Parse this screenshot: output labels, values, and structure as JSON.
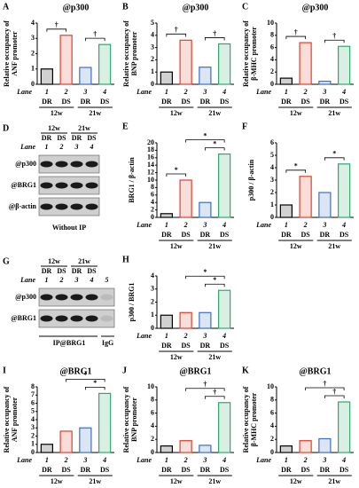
{
  "chart_data": [
    {
      "type": "bar",
      "panel": "A",
      "title": "@p300",
      "ylabel": [
        "Relative occupancy of",
        "ANF promoter"
      ],
      "lane_label": "Lane",
      "categories": [
        "1",
        "2",
        "3",
        "4"
      ],
      "conditions": [
        "DR",
        "DS",
        "DR",
        "DS"
      ],
      "ages": [
        "12w",
        "21w"
      ],
      "colors": [
        "#000000",
        "#e0402a",
        "#3a6fc4",
        "#2ea86b"
      ],
      "values": [
        1,
        3.2,
        1.1,
        2.6
      ],
      "ylim": [
        0,
        4
      ],
      "yticks": [
        0,
        1,
        2,
        3,
        4
      ],
      "sig": [
        {
          "from": 0,
          "to": 1,
          "label": "†"
        },
        {
          "from": 2,
          "to": 3,
          "label": "†"
        }
      ]
    },
    {
      "type": "bar",
      "panel": "B",
      "title": "@p300",
      "ylabel": [
        "Relative occupancy of",
        "BNP promoter"
      ],
      "lane_label": "Lane",
      "categories": [
        "1",
        "2",
        "3",
        "4"
      ],
      "conditions": [
        "DR",
        "DS",
        "DR",
        "DS"
      ],
      "ages": [
        "12w",
        "21w"
      ],
      "colors": [
        "#000000",
        "#e0402a",
        "#3a6fc4",
        "#2ea86b"
      ],
      "values": [
        1,
        3.6,
        1.4,
        3.3
      ],
      "ylim": [
        0,
        5
      ],
      "yticks": [
        0,
        1,
        2,
        3,
        4,
        5
      ],
      "sig": [
        {
          "from": 0,
          "to": 1,
          "label": "†"
        },
        {
          "from": 2,
          "to": 3,
          "label": "†"
        }
      ]
    },
    {
      "type": "bar",
      "panel": "C",
      "title": "@p300",
      "ylabel": [
        "Relative occupancy of",
        "β-MHC promoter"
      ],
      "lane_label": "Lane",
      "categories": [
        "1",
        "2",
        "3",
        "4"
      ],
      "conditions": [
        "DR",
        "DS",
        "DR",
        "DS"
      ],
      "ages": [
        "12w",
        "21w"
      ],
      "colors": [
        "#000000",
        "#e0402a",
        "#3a6fc4",
        "#2ea86b"
      ],
      "values": [
        1,
        6.8,
        0.5,
        6.2
      ],
      "ylim": [
        0,
        10
      ],
      "yticks": [
        0,
        2,
        4,
        6,
        8,
        10
      ],
      "sig": [
        {
          "from": 0,
          "to": 1,
          "label": "†"
        },
        {
          "from": 2,
          "to": 3,
          "label": "†"
        }
      ]
    },
    {
      "type": "bar",
      "panel": "E",
      "ylabel": [
        "BRG1 / β-actin"
      ],
      "lane_label": "Lane",
      "categories": [
        "1",
        "2",
        "3",
        "4"
      ],
      "conditions": [
        "DR",
        "DS",
        "DR",
        "DS"
      ],
      "ages": [
        "12w",
        "21w"
      ],
      "colors": [
        "#000000",
        "#e0402a",
        "#3a6fc4",
        "#2ea86b"
      ],
      "values": [
        1,
        10,
        4,
        17
      ],
      "ylim": [
        0,
        20
      ],
      "yticks": [
        0,
        2,
        4,
        6,
        8,
        10,
        12,
        14,
        16,
        18,
        20
      ],
      "sig": [
        {
          "from": 0,
          "to": 1,
          "label": "*"
        },
        {
          "from": 2,
          "to": 3,
          "label": "*"
        },
        {
          "from": 1,
          "to": 3,
          "label": "*"
        }
      ]
    },
    {
      "type": "bar",
      "panel": "F",
      "ylabel": [
        "p300 / β-actin"
      ],
      "lane_label": "Lane",
      "categories": [
        "1",
        "2",
        "3",
        "4"
      ],
      "conditions": [
        "DR",
        "DS",
        "DR",
        "DS"
      ],
      "ages": [
        "12w",
        "21w"
      ],
      "colors": [
        "#000000",
        "#e0402a",
        "#3a6fc4",
        "#2ea86b"
      ],
      "values": [
        1,
        3.3,
        2,
        4.3
      ],
      "ylim": [
        0,
        6
      ],
      "yticks": [
        0,
        1,
        2,
        3,
        4,
        5,
        6
      ],
      "sig": [
        {
          "from": 0,
          "to": 1,
          "label": "*"
        },
        {
          "from": 2,
          "to": 3,
          "label": "*"
        }
      ]
    },
    {
      "type": "bar",
      "panel": "H",
      "ylabel": [
        "p300 / BRG1"
      ],
      "lane_label": "Lane",
      "categories": [
        "1",
        "2",
        "3",
        "4"
      ],
      "conditions": [
        "DR",
        "DS",
        "DR",
        "DS"
      ],
      "ages": [
        "12w",
        "21w"
      ],
      "colors": [
        "#000000",
        "#e0402a",
        "#3a6fc4",
        "#2ea86b"
      ],
      "values": [
        1,
        1.2,
        1.2,
        2.9
      ],
      "ylim": [
        0,
        4
      ],
      "yticks": [
        0,
        1,
        2,
        3,
        4
      ],
      "sig": [
        {
          "from": 2,
          "to": 3,
          "label": "*"
        },
        {
          "from": 1,
          "to": 3,
          "label": "*"
        }
      ]
    },
    {
      "type": "bar",
      "panel": "I",
      "title": "@BRG1",
      "ylabel": [
        "Relative occupancy of",
        "ANF promoter"
      ],
      "lane_label": "Lane",
      "categories": [
        "1",
        "2",
        "3",
        "4"
      ],
      "conditions": [
        "DR",
        "DS",
        "DR",
        "DS"
      ],
      "ages": [
        "12w",
        "21w"
      ],
      "colors": [
        "#000000",
        "#e0402a",
        "#3a6fc4",
        "#2ea86b"
      ],
      "values": [
        1,
        2.6,
        3,
        7.2
      ],
      "ylim": [
        0,
        8
      ],
      "yticks": [
        0,
        1,
        2,
        3,
        4,
        5,
        6,
        7,
        8
      ],
      "sig": [
        {
          "from": 2,
          "to": 3,
          "label": "*"
        },
        {
          "from": 1,
          "to": 3,
          "label": "*"
        }
      ]
    },
    {
      "type": "bar",
      "panel": "J",
      "title": "@BRG1",
      "ylabel": [
        "Relative occupancy of",
        "BNP promoter"
      ],
      "lane_label": "Lane",
      "categories": [
        "1",
        "2",
        "3",
        "4"
      ],
      "conditions": [
        "DR",
        "DS",
        "DR",
        "DS"
      ],
      "ages": [
        "12w",
        "21w"
      ],
      "colors": [
        "#000000",
        "#e0402a",
        "#3a6fc4",
        "#2ea86b"
      ],
      "values": [
        1,
        1.8,
        1.1,
        7.6
      ],
      "ylim": [
        0,
        10
      ],
      "yticks": [
        0,
        2,
        4,
        6,
        8,
        10
      ],
      "sig": [
        {
          "from": 2,
          "to": 3,
          "label": "†"
        },
        {
          "from": 1,
          "to": 3,
          "label": "†"
        }
      ]
    },
    {
      "type": "bar",
      "panel": "K",
      "title": "@BRG1",
      "ylabel": [
        "Relative occupancy of",
        "β-MHC promoter"
      ],
      "lane_label": "Lane",
      "categories": [
        "1",
        "2",
        "3",
        "4"
      ],
      "conditions": [
        "DR",
        "DS",
        "DR",
        "DS"
      ],
      "ages": [
        "12w",
        "21w"
      ],
      "colors": [
        "#000000",
        "#e0402a",
        "#3a6fc4",
        "#2ea86b"
      ],
      "values": [
        1,
        1.8,
        2.1,
        7.7
      ],
      "ylim": [
        0,
        10
      ],
      "yticks": [
        0,
        2,
        4,
        6,
        8,
        10
      ],
      "sig": [
        {
          "from": 2,
          "to": 3,
          "label": "†"
        },
        {
          "from": 1,
          "to": 3,
          "label": "†"
        }
      ]
    }
  ],
  "blots": [
    {
      "panel": "D",
      "ages": [
        "12w",
        "21w"
      ],
      "conditions": [
        "DR",
        "DS",
        "DR",
        "DS"
      ],
      "lane_label": "Lane",
      "lanes": [
        "1",
        "2",
        "3",
        "4"
      ],
      "rows": [
        "@p300",
        "@BRG1",
        "@β-actin"
      ],
      "footer": [
        "Without IP"
      ]
    },
    {
      "panel": "G",
      "ages": [
        "12w",
        "21w"
      ],
      "conditions": [
        "DR",
        "DS",
        "DR",
        "DS"
      ],
      "lane_label": "Lane",
      "lanes": [
        "1",
        "2",
        "3",
        "4",
        "5"
      ],
      "rows": [
        "@p300",
        "@BRG1"
      ],
      "footer": [
        "IP@BRG1",
        "IgG"
      ]
    }
  ]
}
